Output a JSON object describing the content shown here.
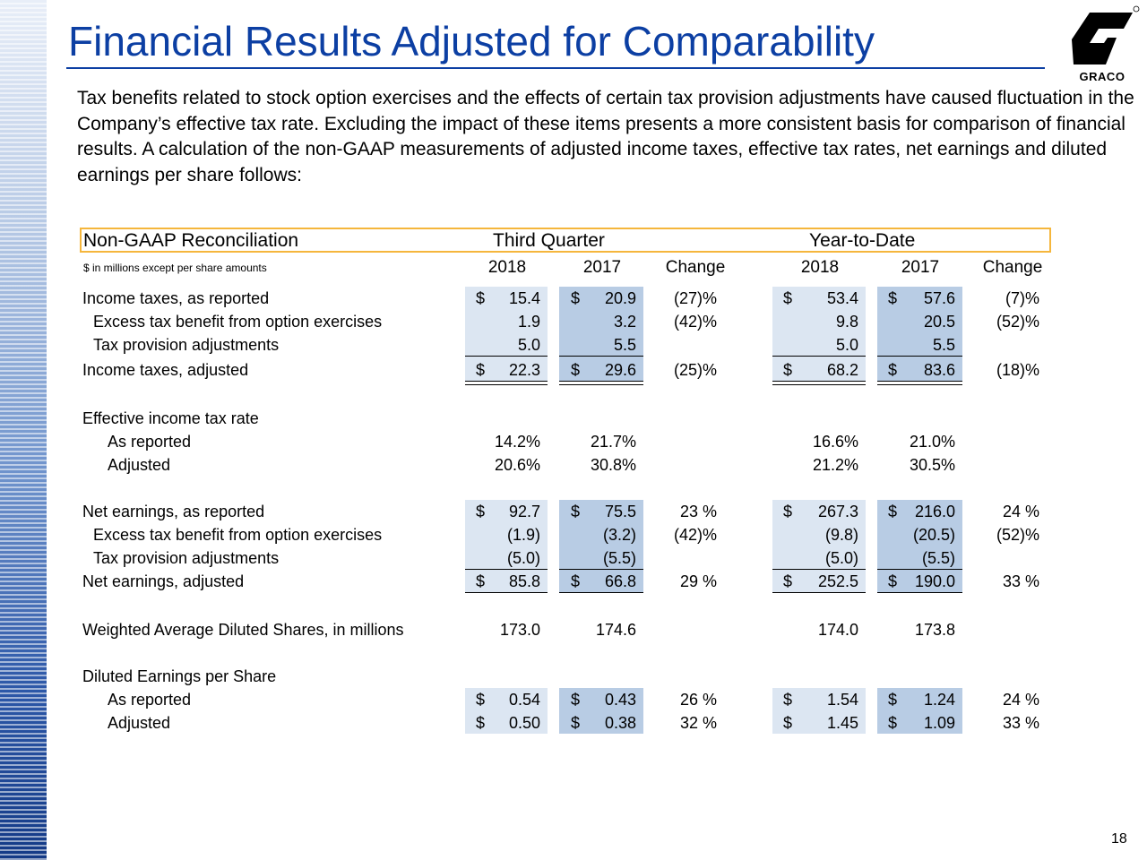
{
  "title": "Financial Results Adjusted for Comparability",
  "brand": {
    "logo_icon": "graco-g-icon",
    "wordmark": "GRACO",
    "colors": {
      "title": "#0c3fa3",
      "header_border": "#f5b63c",
      "shade_light": "#dce6f2",
      "shade_dark": "#b8cce4"
    }
  },
  "intro": "Tax benefits related to stock option exercises and the effects of certain tax provision adjustments have caused fluctuation in the Company’s effective tax rate.  Excluding the impact of these items presents a more consistent basis for comparison of financial results.  A calculation of the non-GAAP measurements of adjusted income taxes, effective tax rates, net earnings and diluted earnings per share follows:",
  "table": {
    "heading": "Non-GAAP Reconciliation",
    "group_q": "Third Quarter",
    "group_y": "Year-to-Date",
    "units": "$ in millions except per share amounts",
    "cols": [
      "2018",
      "2017",
      "Change",
      "2018",
      "2017",
      "Change"
    ],
    "rows": [
      {
        "label": "Income taxes, as reported",
        "q18": "15.4",
        "q17": "20.9",
        "qc": "(27)%",
        "y18": "53.4",
        "y17": "57.6",
        "yc": "(7)%"
      },
      {
        "label": "Excess tax benefit from option exercises",
        "q18": "1.9",
        "q17": "3.2",
        "qc": "(42)%",
        "y18": "9.8",
        "y17": "20.5",
        "yc": "(52)%"
      },
      {
        "label": "Tax provision adjustments",
        "q18": "5.0",
        "q17": "5.5",
        "qc": "",
        "y18": "5.0",
        "y17": "5.5",
        "yc": ""
      },
      {
        "label": "Income taxes, adjusted",
        "q18": "22.3",
        "q17": "29.6",
        "qc": "(25)%",
        "y18": "68.2",
        "y17": "83.6",
        "yc": "(18)%"
      },
      {
        "label": "Effective income tax rate"
      },
      {
        "label": "As reported",
        "q18": "14.2%",
        "q17": "21.7%",
        "y18": "16.6%",
        "y17": "21.0%"
      },
      {
        "label": "Adjusted",
        "q18": "20.6%",
        "q17": "30.8%",
        "y18": "21.2%",
        "y17": "30.5%"
      },
      {
        "label": "Net earnings, as reported",
        "q18": "92.7",
        "q17": "75.5",
        "qc": "23 %",
        "y18": "267.3",
        "y17": "216.0",
        "yc": "24 %"
      },
      {
        "label": "Excess tax benefit from option exercises",
        "q18": "(1.9)",
        "q17": "(3.2)",
        "qc": "(42)%",
        "y18": "(9.8)",
        "y17": "(20.5)",
        "yc": "(52)%"
      },
      {
        "label": "Tax provision adjustments",
        "q18": "(5.0)",
        "q17": "(5.5)",
        "qc": "",
        "y18": "(5.0)",
        "y17": "(5.5)",
        "yc": ""
      },
      {
        "label": "Net earnings, adjusted",
        "q18": "85.8",
        "q17": "66.8",
        "qc": "29 %",
        "y18": "252.5",
        "y17": "190.0",
        "yc": "33 %"
      },
      {
        "label": "Weighted Average Diluted Shares, in millions",
        "q18": "173.0",
        "q17": "174.6",
        "y18": "174.0",
        "y17": "173.8"
      },
      {
        "label": "Diluted Earnings per Share"
      },
      {
        "label": "As reported",
        "q18": "0.54",
        "q17": "0.43",
        "qc": "26 %",
        "y18": "1.54",
        "y17": "1.24",
        "yc": "24 %"
      },
      {
        "label": "Adjusted",
        "q18": "0.50",
        "q17": "0.38",
        "qc": "32 %",
        "y18": "1.45",
        "y17": "1.09",
        "yc": "33 %"
      }
    ],
    "dollar": "$"
  },
  "page_number": "18"
}
